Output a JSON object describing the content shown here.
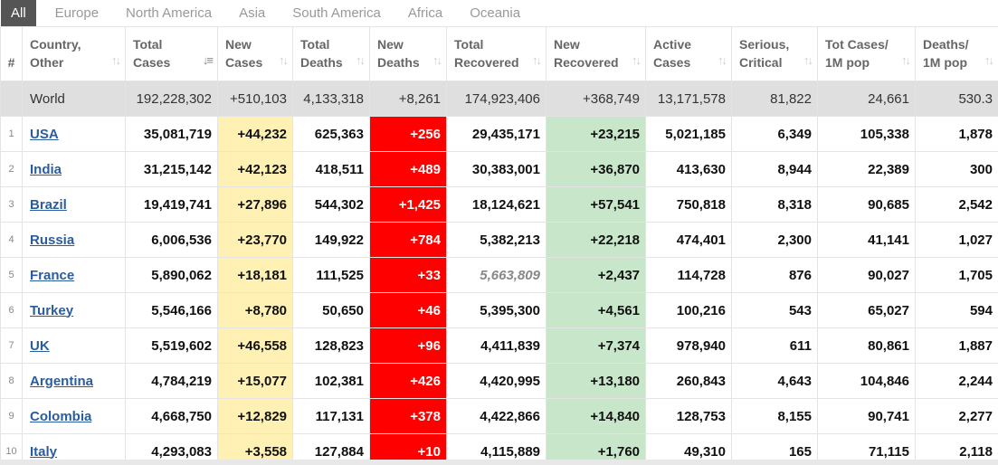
{
  "tabs": [
    {
      "label": "All",
      "active": true
    },
    {
      "label": "Europe"
    },
    {
      "label": "North America"
    },
    {
      "label": "Asia"
    },
    {
      "label": "South America"
    },
    {
      "label": "Africa"
    },
    {
      "label": "Oceania"
    }
  ],
  "headers": {
    "idx": "#",
    "country": [
      "Country,",
      "Other"
    ],
    "total_cases": [
      "Total",
      "Cases"
    ],
    "new_cases": [
      "New",
      "Cases"
    ],
    "total_deaths": [
      "Total",
      "Deaths"
    ],
    "new_deaths": [
      "New",
      "Deaths"
    ],
    "total_recovered": [
      "Total",
      "Recovered"
    ],
    "new_recovered": [
      "New",
      "Recovered"
    ],
    "active_cases": [
      "Active",
      "Cases"
    ],
    "serious_critical": [
      "Serious,",
      "Critical"
    ],
    "tot_cases_1m": [
      "Tot Cases/",
      "1M pop"
    ],
    "deaths_1m": [
      "Deaths/",
      "1M pop"
    ]
  },
  "world": {
    "country": "World",
    "total_cases": "192,228,302",
    "new_cases": "+510,103",
    "total_deaths": "4,133,318",
    "new_deaths": "+8,261",
    "total_recovered": "174,923,406",
    "new_recovered": "+368,749",
    "active_cases": "13,171,578",
    "serious_critical": "81,822",
    "tot_cases_1m": "24,661",
    "deaths_1m": "530.3"
  },
  "rows": [
    {
      "idx": "1",
      "country": "USA",
      "total_cases": "35,081,719",
      "new_cases": "+44,232",
      "total_deaths": "625,363",
      "new_deaths": "+256",
      "total_recovered": "29,435,171",
      "new_recovered": "+23,215",
      "active_cases": "5,021,185",
      "serious_critical": "6,349",
      "tot_cases_1m": "105,338",
      "deaths_1m": "1,878"
    },
    {
      "idx": "2",
      "country": "India",
      "total_cases": "31,215,142",
      "new_cases": "+42,123",
      "total_deaths": "418,511",
      "new_deaths": "+489",
      "total_recovered": "30,383,001",
      "new_recovered": "+36,870",
      "active_cases": "413,630",
      "serious_critical": "8,944",
      "tot_cases_1m": "22,389",
      "deaths_1m": "300"
    },
    {
      "idx": "3",
      "country": "Brazil",
      "total_cases": "19,419,741",
      "new_cases": "+27,896",
      "total_deaths": "544,302",
      "new_deaths": "+1,425",
      "total_recovered": "18,124,621",
      "new_recovered": "+57,541",
      "active_cases": "750,818",
      "serious_critical": "8,318",
      "tot_cases_1m": "90,685",
      "deaths_1m": "2,542"
    },
    {
      "idx": "4",
      "country": "Russia",
      "total_cases": "6,006,536",
      "new_cases": "+23,770",
      "total_deaths": "149,922",
      "new_deaths": "+784",
      "total_recovered": "5,382,213",
      "new_recovered": "+22,218",
      "active_cases": "474,401",
      "serious_critical": "2,300",
      "tot_cases_1m": "41,141",
      "deaths_1m": "1,027"
    },
    {
      "idx": "5",
      "country": "France",
      "total_cases": "5,890,062",
      "new_cases": "+18,181",
      "total_deaths": "111,525",
      "new_deaths": "+33",
      "total_recovered": "5,663,809",
      "new_recovered": "+2,437",
      "active_cases": "114,728",
      "serious_critical": "876",
      "tot_cases_1m": "90,027",
      "deaths_1m": "1,705"
    },
    {
      "idx": "6",
      "country": "Turkey",
      "total_cases": "5,546,166",
      "new_cases": "+8,780",
      "total_deaths": "50,650",
      "new_deaths": "+46",
      "total_recovered": "5,395,300",
      "new_recovered": "+4,561",
      "active_cases": "100,216",
      "serious_critical": "543",
      "tot_cases_1m": "65,027",
      "deaths_1m": "594"
    },
    {
      "idx": "7",
      "country": "UK",
      "total_cases": "5,519,602",
      "new_cases": "+46,558",
      "total_deaths": "128,823",
      "new_deaths": "+96",
      "total_recovered": "4,411,839",
      "new_recovered": "+7,374",
      "active_cases": "978,940",
      "serious_critical": "611",
      "tot_cases_1m": "80,861",
      "deaths_1m": "1,887"
    },
    {
      "idx": "8",
      "country": "Argentina",
      "total_cases": "4,784,219",
      "new_cases": "+15,077",
      "total_deaths": "102,381",
      "new_deaths": "+426",
      "total_recovered": "4,420,995",
      "new_recovered": "+13,180",
      "active_cases": "260,843",
      "serious_critical": "4,643",
      "tot_cases_1m": "104,846",
      "deaths_1m": "2,244"
    },
    {
      "idx": "9",
      "country": "Colombia",
      "total_cases": "4,668,750",
      "new_cases": "+12,829",
      "total_deaths": "117,131",
      "new_deaths": "+378",
      "total_recovered": "4,422,866",
      "new_recovered": "+14,840",
      "active_cases": "128,753",
      "serious_critical": "8,155",
      "tot_cases_1m": "90,741",
      "deaths_1m": "2,277"
    },
    {
      "idx": "10",
      "country": "Italy",
      "total_cases": "4,293,083",
      "new_cases": "+3,558",
      "total_deaths": "127,884",
      "new_deaths": "+10",
      "total_recovered": "4,115,889",
      "new_recovered": "+1,760",
      "active_cases": "49,310",
      "serious_critical": "165",
      "tot_cases_1m": "71,115",
      "deaths_1m": "2,118"
    }
  ],
  "colors": {
    "new_cases_bg": "#fff0b3",
    "new_deaths_bg": "#ff0000",
    "new_recovered_bg": "#c8e6c9",
    "link": "#2a5d9f",
    "world_row_bg": "#dfdfdf",
    "active_tab_bg": "#555555"
  },
  "icons": {
    "sort": "sort-arrows-icon",
    "sort_active": "sort-desc-icon"
  }
}
